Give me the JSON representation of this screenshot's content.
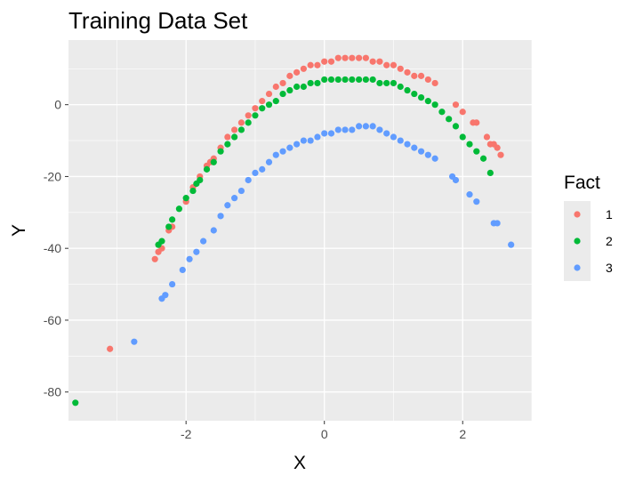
{
  "chart_data": {
    "type": "scatter",
    "title": "Training Data Set",
    "xlabel": "X",
    "ylabel": "Y",
    "xlim": [
      -3.7,
      3.0
    ],
    "ylim": [
      -88,
      18
    ],
    "x_ticks": [
      -2,
      0,
      2
    ],
    "y_ticks": [
      0,
      -20,
      -40,
      -60,
      -80
    ],
    "grid": true,
    "legend": {
      "title": "Fact",
      "position": "right"
    },
    "colors": {
      "1": "#F8766D",
      "2": "#00BA38",
      "3": "#619CFF"
    },
    "series": [
      {
        "name": "1",
        "color": "#F8766D",
        "points": [
          [
            -3.1,
            -68
          ],
          [
            -2.45,
            -43
          ],
          [
            -2.4,
            -41
          ],
          [
            -2.35,
            -40
          ],
          [
            -2.25,
            -35
          ],
          [
            -2.2,
            -34
          ],
          [
            -2.0,
            -27
          ],
          [
            -1.9,
            -23
          ],
          [
            -1.8,
            -20
          ],
          [
            -1.7,
            -17
          ],
          [
            -1.65,
            -16
          ],
          [
            -1.6,
            -15
          ],
          [
            -1.5,
            -12
          ],
          [
            -1.4,
            -9
          ],
          [
            -1.3,
            -7
          ],
          [
            -1.2,
            -5
          ],
          [
            -1.1,
            -3
          ],
          [
            -1.0,
            -1
          ],
          [
            -0.9,
            1
          ],
          [
            -0.8,
            3
          ],
          [
            -0.7,
            5
          ],
          [
            -0.6,
            6
          ],
          [
            -0.5,
            8
          ],
          [
            -0.4,
            9
          ],
          [
            -0.3,
            10
          ],
          [
            -0.2,
            11
          ],
          [
            -0.1,
            11
          ],
          [
            0.0,
            12
          ],
          [
            0.1,
            12
          ],
          [
            0.2,
            13
          ],
          [
            0.3,
            13
          ],
          [
            0.4,
            13
          ],
          [
            0.5,
            13
          ],
          [
            0.6,
            13
          ],
          [
            0.7,
            12
          ],
          [
            0.8,
            12
          ],
          [
            0.9,
            11
          ],
          [
            1.0,
            11
          ],
          [
            1.1,
            10
          ],
          [
            1.2,
            9
          ],
          [
            1.3,
            8
          ],
          [
            1.4,
            8
          ],
          [
            1.5,
            7
          ],
          [
            1.6,
            6
          ],
          [
            1.9,
            0
          ],
          [
            2.0,
            -2
          ],
          [
            2.15,
            -5
          ],
          [
            2.2,
            -5
          ],
          [
            2.35,
            -9
          ],
          [
            2.4,
            -11
          ],
          [
            2.45,
            -11
          ],
          [
            2.5,
            -12
          ],
          [
            2.55,
            -14
          ]
        ]
      },
      {
        "name": "2",
        "color": "#00BA38",
        "points": [
          [
            -3.6,
            -83
          ],
          [
            -2.4,
            -39
          ],
          [
            -2.35,
            -38
          ],
          [
            -2.25,
            -34
          ],
          [
            -2.2,
            -32
          ],
          [
            -2.1,
            -29
          ],
          [
            -2.0,
            -26
          ],
          [
            -1.9,
            -24
          ],
          [
            -1.85,
            -22
          ],
          [
            -1.8,
            -21
          ],
          [
            -1.7,
            -18
          ],
          [
            -1.6,
            -16
          ],
          [
            -1.5,
            -13
          ],
          [
            -1.4,
            -11
          ],
          [
            -1.3,
            -9
          ],
          [
            -1.2,
            -7
          ],
          [
            -1.1,
            -5
          ],
          [
            -1.0,
            -3
          ],
          [
            -0.9,
            -1
          ],
          [
            -0.8,
            0
          ],
          [
            -0.7,
            1
          ],
          [
            -0.6,
            3
          ],
          [
            -0.5,
            4
          ],
          [
            -0.4,
            5
          ],
          [
            -0.3,
            5
          ],
          [
            -0.2,
            6
          ],
          [
            -0.1,
            6
          ],
          [
            0.0,
            7
          ],
          [
            0.1,
            7
          ],
          [
            0.2,
            7
          ],
          [
            0.3,
            7
          ],
          [
            0.4,
            7
          ],
          [
            0.5,
            7
          ],
          [
            0.6,
            7
          ],
          [
            0.7,
            7
          ],
          [
            0.8,
            6
          ],
          [
            0.9,
            6
          ],
          [
            1.0,
            6
          ],
          [
            1.1,
            5
          ],
          [
            1.2,
            4
          ],
          [
            1.3,
            3
          ],
          [
            1.4,
            2
          ],
          [
            1.5,
            1
          ],
          [
            1.6,
            0
          ],
          [
            1.7,
            -2
          ],
          [
            1.8,
            -4
          ],
          [
            1.9,
            -6
          ],
          [
            2.0,
            -9
          ],
          [
            2.1,
            -11
          ],
          [
            2.2,
            -13
          ],
          [
            2.3,
            -15
          ],
          [
            2.4,
            -19
          ]
        ]
      },
      {
        "name": "3",
        "color": "#619CFF",
        "points": [
          [
            -2.75,
            -66
          ],
          [
            -2.35,
            -54
          ],
          [
            -2.3,
            -53
          ],
          [
            -2.2,
            -50
          ],
          [
            -2.05,
            -46
          ],
          [
            -1.95,
            -43
          ],
          [
            -1.85,
            -41
          ],
          [
            -1.75,
            -38
          ],
          [
            -1.6,
            -35
          ],
          [
            -1.5,
            -31
          ],
          [
            -1.4,
            -28
          ],
          [
            -1.3,
            -26
          ],
          [
            -1.2,
            -24
          ],
          [
            -1.1,
            -21
          ],
          [
            -1.0,
            -19
          ],
          [
            -0.9,
            -18
          ],
          [
            -0.8,
            -16
          ],
          [
            -0.7,
            -14
          ],
          [
            -0.6,
            -13
          ],
          [
            -0.5,
            -12
          ],
          [
            -0.4,
            -11
          ],
          [
            -0.3,
            -10
          ],
          [
            -0.2,
            -10
          ],
          [
            -0.1,
            -9
          ],
          [
            0.0,
            -8
          ],
          [
            0.1,
            -8
          ],
          [
            0.2,
            -7
          ],
          [
            0.3,
            -7
          ],
          [
            0.4,
            -7
          ],
          [
            0.5,
            -6
          ],
          [
            0.6,
            -6
          ],
          [
            0.7,
            -6
          ],
          [
            0.8,
            -7
          ],
          [
            0.9,
            -8
          ],
          [
            1.0,
            -9
          ],
          [
            1.1,
            -10
          ],
          [
            1.2,
            -11
          ],
          [
            1.3,
            -12
          ],
          [
            1.4,
            -13
          ],
          [
            1.5,
            -14
          ],
          [
            1.6,
            -15
          ],
          [
            1.85,
            -20
          ],
          [
            1.9,
            -21
          ],
          [
            2.1,
            -25
          ],
          [
            2.2,
            -27
          ],
          [
            2.45,
            -33
          ],
          [
            2.5,
            -33
          ],
          [
            2.7,
            -39
          ]
        ]
      }
    ]
  }
}
